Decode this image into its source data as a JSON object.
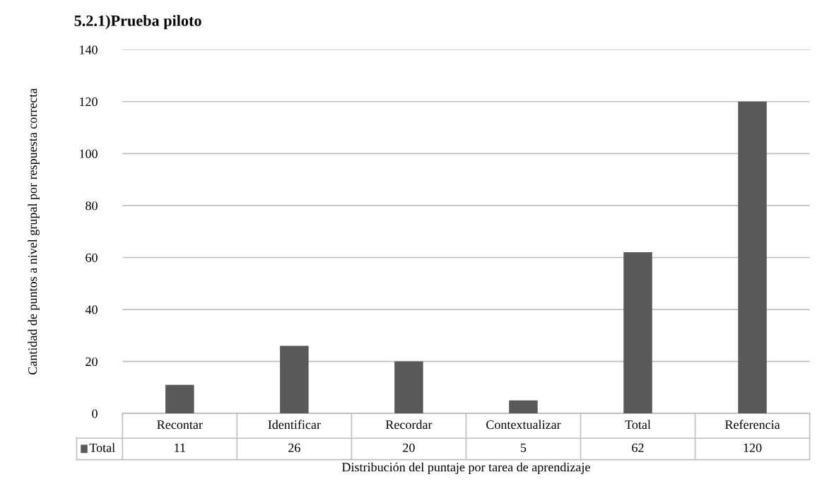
{
  "chart_data": {
    "type": "bar",
    "title": "5.2.1)Prueba piloto",
    "xlabel": "Distribución del puntaje por tarea de aprendizaje",
    "ylabel": "Cantidad de puntos a nivel grupal por respuesta correcta",
    "categories": [
      "Recontar",
      "Identificar",
      "Recordar",
      "Contextualizar",
      "Total",
      "Referencia"
    ],
    "series": [
      {
        "name": "Total",
        "color": "#595959",
        "values": [
          11,
          26,
          20,
          5,
          62,
          120
        ]
      }
    ],
    "ylim": [
      0,
      140
    ],
    "yticks": [
      0,
      20,
      40,
      60,
      80,
      100,
      120,
      140
    ],
    "grid": "y",
    "data_labels": true,
    "legend": "bottom left"
  }
}
